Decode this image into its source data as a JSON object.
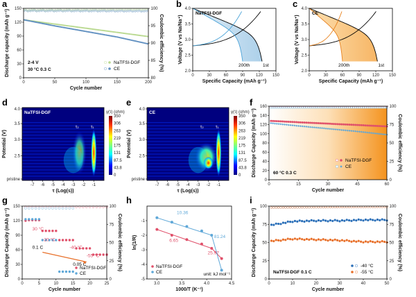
{
  "panels": {
    "a": {
      "label": "a",
      "ylabel": "Discharge capacity (mAh g⁻¹)",
      "y2label": "Coulombic efficiency (%)",
      "xlabel": "Cycle number",
      "note1": "2-4 V",
      "note2": "30 °C 0.3 C",
      "legend": [
        "NaTFSI-DGF",
        "CE"
      ]
    },
    "b": {
      "label": "b",
      "title": "NaTFSI-DGF",
      "ylabel": "Voltage (V vs Na/Na⁺)",
      "xlabel": "Specific Capacity (mAh g⁻¹)",
      "tag_last": "200th",
      "tag_first": "1st"
    },
    "c": {
      "label": "c",
      "title": "CE",
      "ylabel": "Voltage (V vs Na/Na⁺)",
      "xlabel": "Specific Capacity (mAh g⁻¹)",
      "tag_last": "200th",
      "tag_first": "1st"
    },
    "d": {
      "label": "d",
      "title": "NaTFSI-DGF",
      "ylabel": "Potential (V)",
      "xlabel": "τ (Log(s))",
      "cb_title": "γ(τ) (ohm)",
      "tau1": "τ₁",
      "tau2": "τ₂"
    },
    "e": {
      "label": "e",
      "title": "CE",
      "ylabel": "Potential (V)",
      "xlabel": "τ (Log(s))",
      "cb_title": "γ(τ) (ohm)",
      "tau1": "τ₁",
      "tau2": "τ₂"
    },
    "f": {
      "label": "f",
      "ylabel": "Discharge Capacity (mAh g⁻¹)",
      "y2label": "Coulombic efficiency (%)",
      "xlabel": "Cycle number",
      "note": "60 °C 0.3 C",
      "legend": [
        "NaTFSI-DGF",
        "CE"
      ]
    },
    "g": {
      "label": "g",
      "ylabel": "Discharge Capacity (mAh g⁻¹)",
      "y2label": "Coulombic efficiency (%)",
      "xlabel": "Cycle number",
      "legend": [
        "NaTFSI-DGF",
        "CE"
      ],
      "annotations": [
        "30 °C",
        "-20 °C",
        "0.1 C",
        "-40 °C",
        "-55 °C",
        "0.05 C"
      ]
    },
    "h": {
      "label": "h",
      "ylabel": "ln(1/R)",
      "xlabel": "1000/T (K⁻¹)",
      "legend": [
        "NaTFSI-DGF",
        "CE"
      ],
      "unit": "unit: kJ mol⁻¹",
      "ea": [
        "10.36",
        "6.65",
        "81.24",
        "25.97"
      ]
    },
    "i": {
      "label": "i",
      "ylabel": "Discharge Capacity (mAh g⁻¹)",
      "y2label": "Coulombic efficiency (%)",
      "xlabel": "Cycle number",
      "note": "NaTFSI-DGF 0.1 C",
      "legend": [
        "-40 °C",
        "-55 °C"
      ]
    }
  },
  "colors": {
    "dgf": "#e0506a",
    "ce": "#5fa8d8",
    "dgf_a": "#b9d98f",
    "ce_a": "#5f8fc0",
    "orange": "#e8702a",
    "blue": "#2a6fb8"
  },
  "chart_data": [
    {
      "type": "scatter",
      "panel": "a",
      "xlim": [
        0,
        200
      ],
      "ylim": [
        0,
        150
      ],
      "y2lim": [
        80,
        100
      ],
      "xticks": [
        0,
        50,
        100,
        150,
        200
      ],
      "yticks": [
        0,
        30,
        60,
        90,
        120,
        150
      ],
      "y2ticks": [
        80,
        85,
        90,
        95,
        100
      ],
      "series": [
        {
          "name": "NaTFSI-DGF",
          "x": [
            1,
            50,
            100,
            150,
            200
          ],
          "y": [
            125,
            116,
            107,
            98,
            89
          ]
        },
        {
          "name": "CE",
          "x": [
            1,
            50,
            100,
            150,
            200
          ],
          "y": [
            125,
            112,
            100,
            88,
            73
          ]
        },
        {
          "name": "NaTFSI-DGF",
          "axis": "y2",
          "x": [
            1,
            200
          ],
          "y": [
            99.5,
            99.6
          ]
        },
        {
          "name": "CE",
          "axis": "y2",
          "x": [
            1,
            200
          ],
          "y": [
            99.3,
            99.2
          ]
        }
      ]
    },
    {
      "type": "line",
      "panel": "b",
      "xlim": [
        0,
        150
      ],
      "ylim": [
        2,
        4
      ],
      "xticks": [
        0,
        30,
        60,
        90,
        120,
        150
      ],
      "yticks": [
        2.0,
        2.5,
        3.0,
        3.5,
        4.0
      ]
    },
    {
      "type": "line",
      "panel": "c",
      "xlim": [
        0,
        150
      ],
      "ylim": [
        2,
        4
      ],
      "xticks": [
        0,
        30,
        60,
        90,
        120,
        150
      ],
      "yticks": [
        2.0,
        2.5,
        3.0,
        3.5,
        4.0
      ]
    },
    {
      "type": "heatmap",
      "panel": "d",
      "xlim": [
        -8,
        0
      ],
      "xticks": [
        -7,
        -6,
        -5,
        -4,
        -3,
        -2,
        -1
      ],
      "yticks": [
        "pristine",
        "2.5",
        "3.0",
        "3.5",
        "4.0"
      ],
      "colorbar": [
        "0",
        "43.8",
        "87.5",
        "131",
        "175",
        "219",
        "263",
        "306",
        "350"
      ]
    },
    {
      "type": "heatmap",
      "panel": "e",
      "xlim": [
        -8,
        0
      ],
      "xticks": [
        -7,
        -6,
        -5,
        -4,
        -3,
        -2,
        -1
      ],
      "yticks": [
        "pristine",
        "2.5",
        "3.0",
        "3.5",
        "4.0"
      ],
      "colorbar": [
        "0",
        "43.8",
        "87.5",
        "131",
        "175",
        "219",
        "263",
        "306",
        "350"
      ]
    },
    {
      "type": "scatter",
      "panel": "f",
      "xlim": [
        0,
        60
      ],
      "ylim": [
        0,
        160
      ],
      "y2lim": [
        0,
        100
      ],
      "xticks": [
        0,
        15,
        30,
        45,
        60
      ],
      "yticks": [
        0,
        20,
        40,
        60,
        80,
        100,
        120,
        140,
        160
      ],
      "y2ticks": [
        0,
        25,
        50,
        75,
        100
      ],
      "series": [
        {
          "name": "NaTFSI-DGF",
          "x": [
            1,
            15,
            30,
            45,
            60
          ],
          "y": [
            128,
            125,
            122,
            119,
            116
          ]
        },
        {
          "name": "CE",
          "x": [
            1,
            15,
            30,
            45,
            60
          ],
          "y": [
            123,
            117,
            111,
            105,
            98
          ]
        },
        {
          "name": "NaTFSI-DGF",
          "axis": "y2",
          "x": [
            1,
            60
          ],
          "y": [
            99,
            99
          ]
        },
        {
          "name": "CE",
          "axis": "y2",
          "x": [
            1,
            60
          ],
          "y": [
            98,
            98
          ]
        }
      ]
    },
    {
      "type": "scatter",
      "panel": "g",
      "xlim": [
        0,
        25
      ],
      "ylim": [
        0,
        150
      ],
      "y2lim": [
        0,
        100
      ],
      "xticks": [
        0,
        5,
        10,
        15,
        20,
        25
      ],
      "yticks": [
        0,
        30,
        60,
        90,
        120,
        150
      ],
      "y2ticks": [
        0,
        25,
        50,
        75,
        100
      ],
      "series": [
        {
          "name": "NaTFSI-DGF",
          "x": [
            1,
            2,
            3,
            4,
            5,
            6,
            7,
            8,
            9,
            10,
            11,
            12,
            13,
            14,
            15,
            16,
            17,
            18,
            19,
            20,
            21,
            22,
            23,
            24,
            25
          ],
          "y": [
            120,
            121,
            121,
            121,
            121,
            99,
            99,
            99,
            99,
            99,
            80,
            80,
            80,
            80,
            80,
            63,
            63,
            63,
            63,
            63,
            50,
            50,
            50,
            50,
            50
          ]
        },
        {
          "name": "CE",
          "x": [
            1,
            2,
            3,
            4,
            5,
            6,
            7,
            8,
            9,
            10,
            11,
            12,
            13,
            14,
            15
          ],
          "y": [
            123,
            123,
            123,
            123,
            123,
            80,
            80,
            80,
            80,
            80,
            15,
            15,
            15,
            15,
            15
          ]
        }
      ]
    },
    {
      "type": "scatter",
      "panel": "h",
      "xlim": [
        2.8,
        4.5
      ],
      "ylim": [
        -5,
        0
      ],
      "xticks": [
        3.0,
        3.5,
        4.0,
        4.5
      ],
      "yticks": [
        -5,
        -4,
        -3,
        -2,
        -1
      ],
      "series": [
        {
          "name": "NaTFSI-DGF",
          "x": [
            3.0,
            3.3,
            3.6,
            3.9,
            4.1,
            4.3
          ],
          "y": [
            -1.6,
            -2.0,
            -2.3,
            -2.6,
            -2.9,
            -3.6
          ]
        },
        {
          "name": "CE",
          "x": [
            3.0,
            3.3,
            3.6,
            3.9,
            4.1,
            4.3
          ],
          "y": [
            -0.8,
            -1.1,
            -1.4,
            -1.7,
            -2.0,
            -4.4
          ]
        }
      ]
    },
    {
      "type": "scatter",
      "panel": "i",
      "xlim": [
        0,
        50
      ],
      "ylim": [
        0,
        100
      ],
      "y2lim": [
        0,
        100
      ],
      "xticks": [
        0,
        10,
        20,
        30,
        40,
        50
      ],
      "yticks": [
        0,
        25,
        50,
        75,
        100
      ],
      "y2ticks": [
        0,
        25,
        50,
        75,
        100
      ],
      "series": [
        {
          "name": "-40 °C",
          "x": [
            1,
            10,
            20,
            30,
            40,
            50
          ],
          "y": [
            74,
            79,
            80,
            80,
            81,
            81
          ]
        },
        {
          "name": "-55 °C",
          "x": [
            1,
            10,
            20,
            30,
            40,
            50
          ],
          "y": [
            52,
            55,
            54,
            53,
            51,
            51
          ]
        },
        {
          "name": "-40 °C",
          "axis": "y2",
          "x": [
            1,
            50
          ],
          "y": [
            98,
            99
          ]
        },
        {
          "name": "-55 °C",
          "axis": "y2",
          "x": [
            1,
            50
          ],
          "y": [
            98,
            99
          ]
        }
      ]
    }
  ]
}
